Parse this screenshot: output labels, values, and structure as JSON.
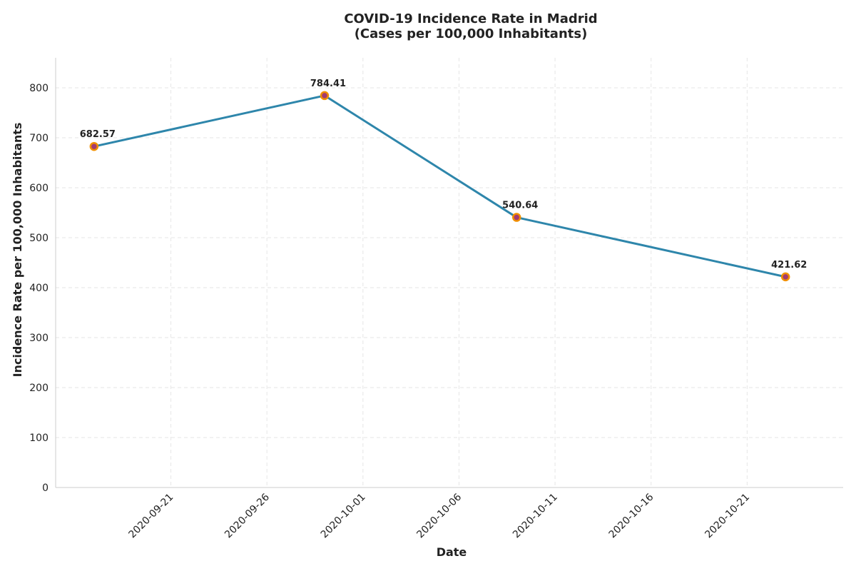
{
  "chart_data": {
    "type": "line",
    "title": "COVID-19 Incidence Rate in Madrid",
    "subtitle": "(Cases per 100,000 Inhabitants)",
    "xlabel": "Date",
    "ylabel": "Incidence Rate per 100,000 Inhabitants",
    "x": [
      "2020-09-17",
      "2020-09-29",
      "2020-10-09",
      "2020-10-23"
    ],
    "values": [
      682.57,
      784.41,
      540.64,
      421.62
    ],
    "value_labels": [
      "682.57",
      "784.41",
      "540.64",
      "421.62"
    ],
    "xlim": [
      "2020-09-15",
      "2020-10-26"
    ],
    "ylim": [
      0,
      860
    ],
    "x_ticks": [
      "2020-09-21",
      "2020-09-26",
      "2020-10-01",
      "2020-10-06",
      "2020-10-11",
      "2020-10-16",
      "2020-10-21"
    ],
    "y_ticks": [
      "0",
      "100",
      "200",
      "300",
      "400",
      "500",
      "600",
      "700",
      "800"
    ],
    "grid": true,
    "colors": {
      "line": "#2e86ab",
      "marker_fill": "#a23b72",
      "marker_edge": "#f18f01"
    }
  }
}
